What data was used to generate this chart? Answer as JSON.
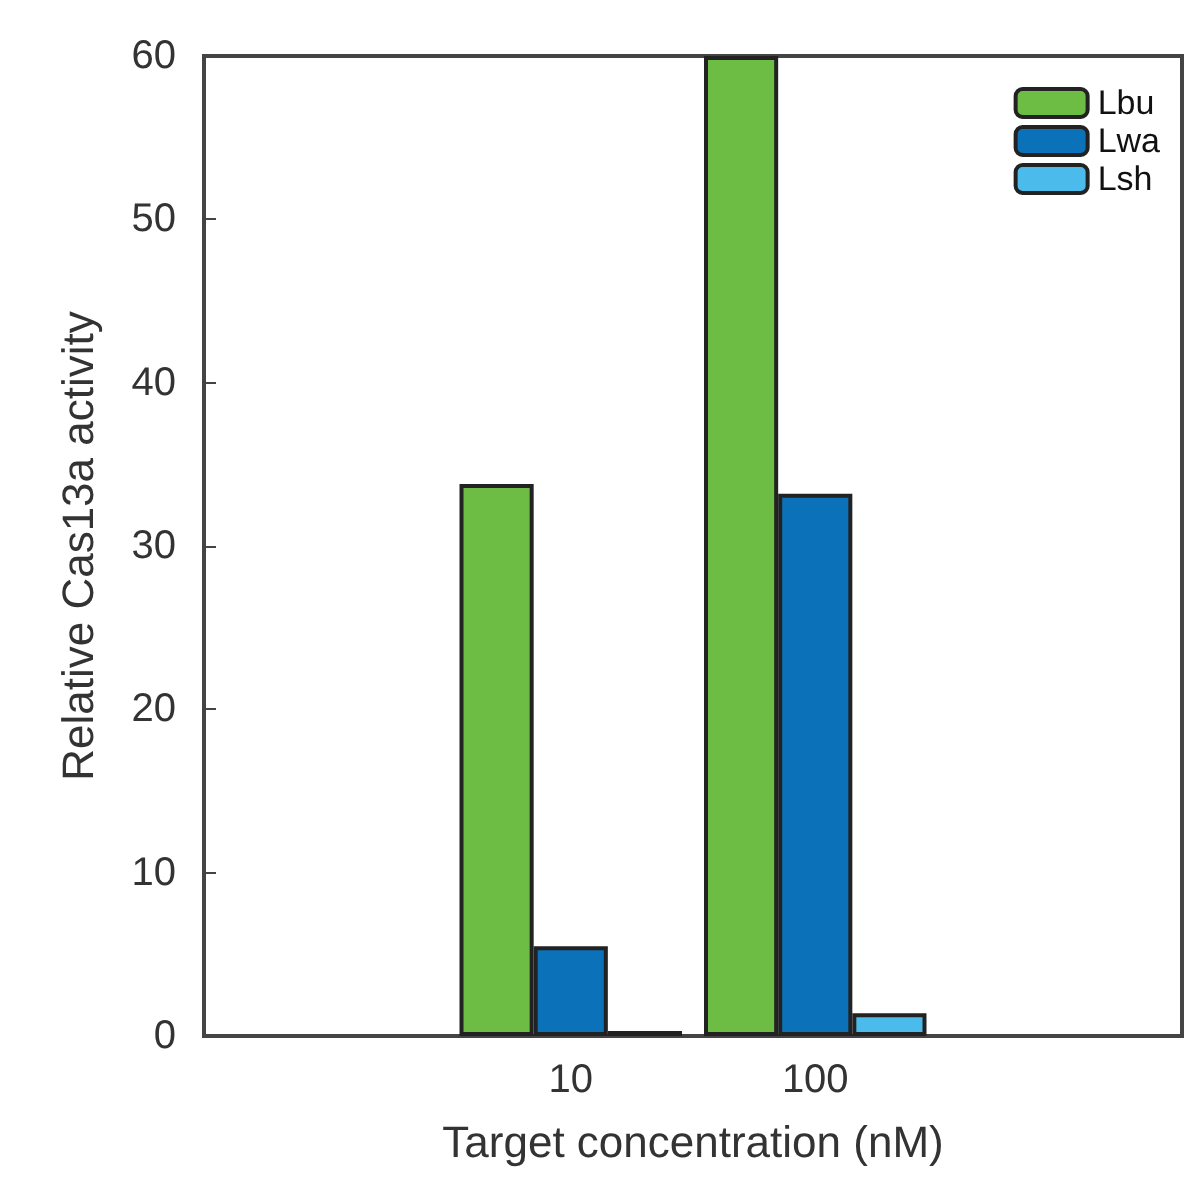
{
  "chart_data": {
    "type": "bar",
    "xlabel": "Target concentration (nM)",
    "ylabel": "Relative Cas13a activity",
    "categories": [
      null,
      "10",
      "100",
      null
    ],
    "series": [
      {
        "name": "Lbu",
        "color": "#6dbd45",
        "values": [
          null,
          33.8,
          60,
          null
        ]
      },
      {
        "name": "Lwa",
        "color": "#0b71b8",
        "values": [
          null,
          5.5,
          33.2,
          null
        ]
      },
      {
        "name": "Lsh",
        "color": "#4bbbeb",
        "values": [
          null,
          0.3,
          1.4,
          null
        ]
      }
    ],
    "ylim": [
      0,
      60
    ],
    "yticks": [
      0,
      10,
      20,
      30,
      40,
      50,
      60
    ],
    "grid": false,
    "legend": "top right"
  }
}
